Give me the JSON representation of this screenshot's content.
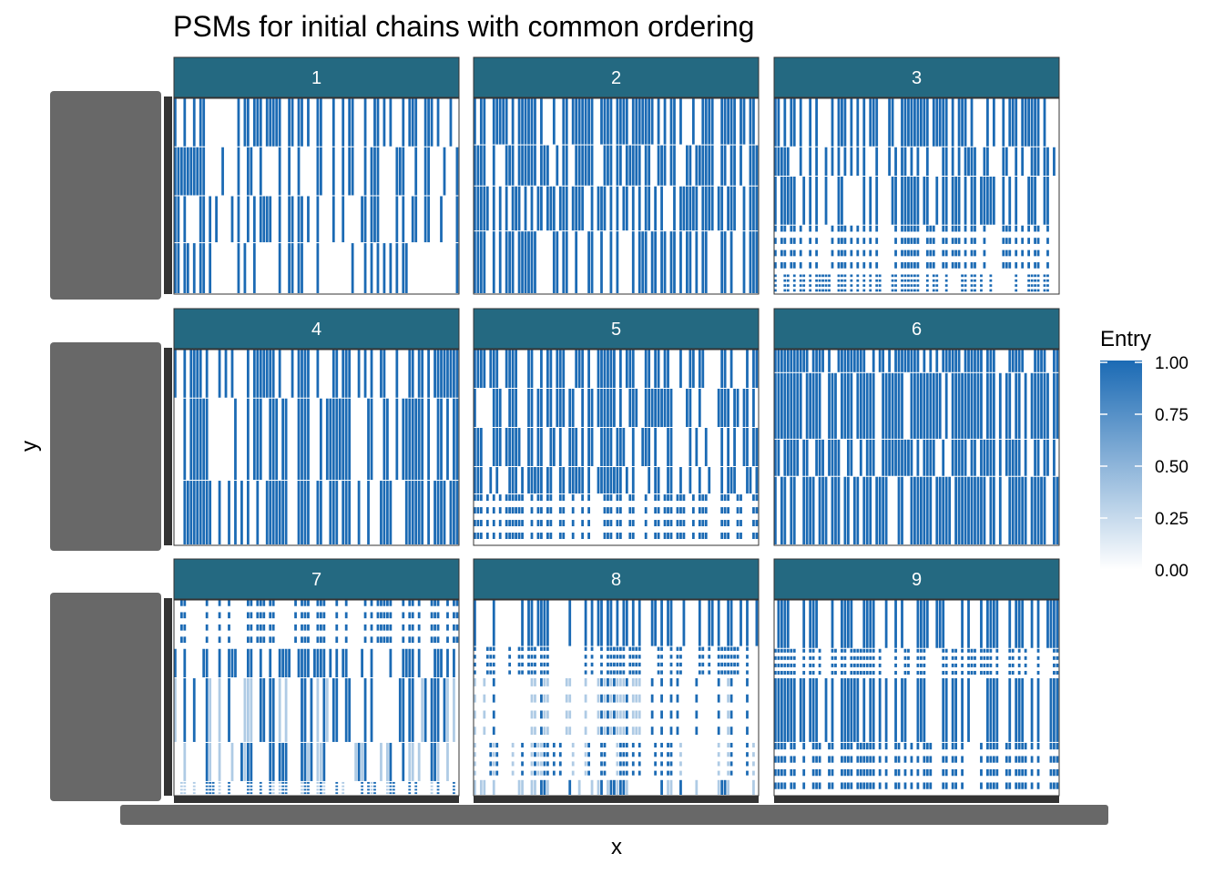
{
  "chart_data": {
    "type": "heatmap",
    "title": "PSMs for initial chains with common ordering",
    "xlabel": "x",
    "ylabel": "y",
    "facet_labels": [
      "1",
      "2",
      "3",
      "4",
      "5",
      "6",
      "7",
      "8",
      "9"
    ],
    "facet_layout": {
      "rows": 3,
      "cols": 3
    },
    "legend": {
      "title": "Entry",
      "position": "right",
      "ticks": [
        "1.00",
        "0.75",
        "0.50",
        "0.25",
        "0.00"
      ],
      "low_color": "#ffffff",
      "high_color": "#1b6ab4"
    },
    "fill_range": [
      0,
      1
    ],
    "matrix_size": 100,
    "strip_color": "#246981",
    "tick_label_color": "#4d4d4d",
    "grid": false
  }
}
